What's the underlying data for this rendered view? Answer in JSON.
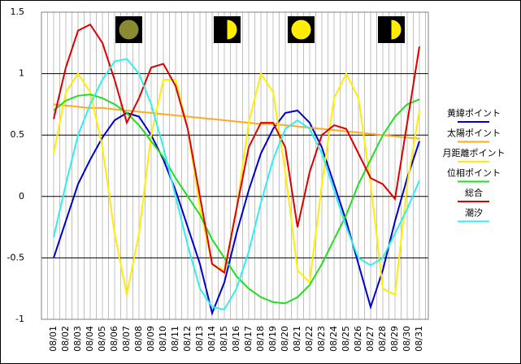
{
  "chart_data": {
    "type": "line",
    "categories": [
      "08/01",
      "08/02",
      "08/03",
      "08/04",
      "08/05",
      "08/06",
      "08/07",
      "08/08",
      "08/09",
      "08/10",
      "08/11",
      "08/12",
      "08/13",
      "08/14",
      "08/15",
      "08/16",
      "08/17",
      "08/18",
      "08/19",
      "08/20",
      "08/21",
      "08/22",
      "08/23",
      "08/24",
      "08/25",
      "08/26",
      "08/27",
      "08/28",
      "08/29",
      "08/30",
      "08/31"
    ],
    "ylim": [
      -1,
      1.5
    ],
    "yticks": [
      -1,
      -0.5,
      0,
      0.5,
      1,
      1.5
    ],
    "grid": true,
    "legend": "right",
    "series": [
      {
        "name": "黄緯ポイント",
        "color": "#0000cc",
        "values": [
          -0.5,
          -0.2,
          0.1,
          0.3,
          0.48,
          0.62,
          0.68,
          0.65,
          0.5,
          0.3,
          0.05,
          -0.25,
          -0.55,
          -0.95,
          -0.7,
          -0.3,
          0.05,
          0.35,
          0.55,
          0.68,
          0.7,
          0.6,
          0.4,
          0.1,
          -0.2,
          -0.55,
          -0.9,
          -0.6,
          -0.2,
          0.15,
          0.45
        ]
      },
      {
        "name": "太陽ポイント",
        "color": "#ffaa22",
        "values": [
          0.75,
          0.74,
          0.73,
          0.72,
          0.72,
          0.71,
          0.7,
          0.69,
          0.68,
          0.67,
          0.66,
          0.65,
          0.64,
          0.63,
          0.62,
          0.61,
          0.6,
          0.59,
          0.59,
          0.58,
          0.57,
          0.56,
          0.55,
          0.54,
          0.53,
          0.52,
          0.51,
          0.5,
          0.49,
          0.48,
          0.47
        ]
      },
      {
        "name": "月距離ポイント",
        "color": "#ffee00",
        "values": [
          0.35,
          0.85,
          1.0,
          0.85,
          0.4,
          -0.3,
          -0.8,
          -0.3,
          0.5,
          0.95,
          0.95,
          0.55,
          -0.1,
          -0.55,
          -0.6,
          -0.1,
          0.6,
          1.0,
          0.85,
          0.2,
          -0.6,
          -0.7,
          0.1,
          0.8,
          1.0,
          0.8,
          0.1,
          -0.75,
          -0.8,
          0.1,
          0.7
        ]
      },
      {
        "name": "位相ポイント",
        "color": "#22dd22",
        "values": [
          0.7,
          0.78,
          0.82,
          0.83,
          0.8,
          0.75,
          0.68,
          0.58,
          0.45,
          0.32,
          0.15,
          0.0,
          -0.15,
          -0.35,
          -0.5,
          -0.65,
          -0.75,
          -0.82,
          -0.86,
          -0.87,
          -0.82,
          -0.72,
          -0.55,
          -0.35,
          -0.15,
          0.1,
          0.3,
          0.5,
          0.65,
          0.75,
          0.79
        ]
      },
      {
        "name": "総合",
        "color": "#dd0000",
        "values": [
          0.63,
          1.05,
          1.35,
          1.4,
          1.25,
          0.95,
          0.6,
          0.8,
          1.05,
          1.08,
          0.9,
          0.55,
          0.0,
          -0.55,
          -0.62,
          -0.1,
          0.4,
          0.6,
          0.6,
          0.4,
          -0.25,
          0.2,
          0.5,
          0.58,
          0.55,
          0.35,
          0.15,
          0.1,
          -0.02,
          0.6,
          1.22
        ]
      },
      {
        "name": "潮汐",
        "color": "#33eeee",
        "values": [
          -0.33,
          0.1,
          0.5,
          0.75,
          0.95,
          1.1,
          1.12,
          1.0,
          0.75,
          0.4,
          0.0,
          -0.4,
          -0.75,
          -0.9,
          -0.92,
          -0.75,
          -0.45,
          -0.05,
          0.3,
          0.55,
          0.62,
          0.55,
          0.35,
          0.05,
          -0.25,
          -0.5,
          -0.56,
          -0.5,
          -0.3,
          -0.1,
          0.13
        ]
      }
    ]
  }
}
